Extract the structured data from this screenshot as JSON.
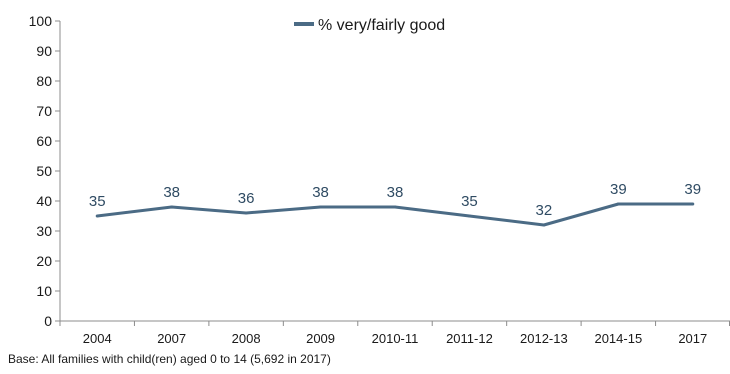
{
  "chart_data": {
    "type": "line",
    "categories": [
      "2004",
      "2007",
      "2008",
      "2009",
      "2010-11",
      "2011-12",
      "2012-13",
      "2014-15",
      "2017"
    ],
    "series": [
      {
        "name": "% very/fairly good",
        "values": [
          35,
          38,
          36,
          38,
          38,
          35,
          32,
          39,
          39
        ],
        "color": "#4b6b85"
      }
    ],
    "ylim": [
      0,
      100
    ],
    "yticks": [
      0,
      10,
      20,
      30,
      40,
      50,
      60,
      70,
      80,
      90,
      100
    ],
    "grid": false,
    "legend_position": "top-center",
    "show_data_labels": true
  },
  "footnote": "Base: All families with child(ren) aged 0 to 14 (5,692 in 2017)"
}
